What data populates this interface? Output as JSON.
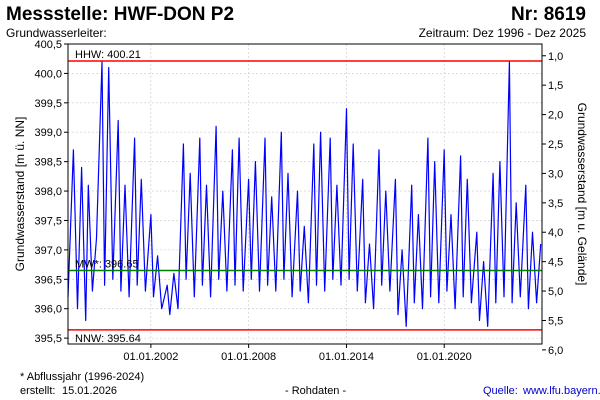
{
  "header": {
    "title": "Messstelle: HWF-DON P2",
    "nr": "Nr: 8619",
    "aquifer": "Grundwasserleiter:",
    "period": "Zeitraum: Dez 1996 - Dez 2025"
  },
  "footer": {
    "footnote": "* Abflussjahr (1996-2024)",
    "created_label": "erstellt:",
    "created_value": "15.01.2026",
    "rawdata": "- Rohdaten -",
    "source_label": "Quelle:",
    "source_value": "www.lfu.bayern.de"
  },
  "colors": {
    "series": "#0000ff",
    "hhw": "#ff0000",
    "nnw": "#ff0000",
    "mw": "#008000",
    "grid": "#c8c8c8"
  },
  "chart_data": {
    "type": "line",
    "ylabel": "Grundwasserstand [m ü. NN]",
    "y2label": "Grundwasserstand [m u. Gelände]",
    "ylim": [
      395.4,
      400.5
    ],
    "y2lim": [
      0.8,
      5.9
    ],
    "y_ticks": [
      "395,5",
      "396,0",
      "396,5",
      "397,0",
      "397,5",
      "398,0",
      "398,5",
      "399,0",
      "399,5",
      "400,0",
      "400,5"
    ],
    "y_tick_values": [
      395.5,
      396.0,
      396.5,
      397.0,
      397.5,
      398.0,
      398.5,
      399.0,
      399.5,
      400.0,
      400.5
    ],
    "y2_ticks": [
      "1,0",
      "1,5",
      "2,0",
      "2,5",
      "3,0",
      "3,5",
      "4,0",
      "4,5",
      "5,0",
      "5,5",
      "6,0"
    ],
    "y2_tick_values": [
      1.0,
      1.5,
      2.0,
      2.5,
      3.0,
      3.5,
      4.0,
      4.5,
      5.0,
      5.5,
      6.0
    ],
    "x_range": [
      "1996-12-01",
      "2025-12-31"
    ],
    "x_ticks": [
      "01.01.2002",
      "01.01.2008",
      "01.01.2014",
      "01.01.2020"
    ],
    "x_tick_dates": [
      "2002-01-01",
      "2008-01-01",
      "2014-01-01",
      "2020-01-01"
    ],
    "grid": true,
    "reference_lines": [
      {
        "label": "HHW: 400.21",
        "value": 400.21
      },
      {
        "label": "MW*: 396.65",
        "value": 396.65
      },
      {
        "label": "NNW: 395.64",
        "value": 395.64
      }
    ],
    "series": [
      {
        "x": [
          "1996-12-01",
          "1997-04-01",
          "1997-07-01",
          "1997-10-01",
          "1998-01-01",
          "1998-03-01",
          "1998-06-01",
          "1998-09-01",
          "1999-01-01",
          "1999-03-01",
          "1999-06-01",
          "1999-09-01",
          "2000-01-01",
          "2000-03-01",
          "2000-06-01",
          "2000-09-01",
          "2001-01-01",
          "2001-03-01",
          "2001-06-01",
          "2001-09-01",
          "2002-01-01",
          "2002-03-01",
          "2002-06-01",
          "2002-09-01",
          "2003-01-01",
          "2003-03-01",
          "2003-06-01",
          "2003-09-01",
          "2004-01-01",
          "2004-03-01",
          "2004-06-01",
          "2004-09-01",
          "2005-01-01",
          "2005-03-01",
          "2005-06-01",
          "2005-09-01",
          "2006-01-01",
          "2006-03-01",
          "2006-06-01",
          "2006-09-01",
          "2007-01-01",
          "2007-03-01",
          "2007-06-01",
          "2007-09-01",
          "2008-01-01",
          "2008-03-01",
          "2008-06-01",
          "2008-09-01",
          "2009-01-01",
          "2009-03-01",
          "2009-06-01",
          "2009-09-01",
          "2010-01-01",
          "2010-03-01",
          "2010-06-01",
          "2010-09-01",
          "2011-01-01",
          "2011-03-01",
          "2011-06-01",
          "2011-09-01",
          "2012-01-01",
          "2012-03-01",
          "2012-06-01",
          "2012-09-01",
          "2013-01-01",
          "2013-03-01",
          "2013-06-01",
          "2013-09-01",
          "2014-01-01",
          "2014-03-01",
          "2014-06-01",
          "2014-09-01",
          "2015-01-01",
          "2015-03-01",
          "2015-06-01",
          "2015-09-01",
          "2016-01-01",
          "2016-03-01",
          "2016-06-01",
          "2016-09-01",
          "2017-01-01",
          "2017-03-01",
          "2017-06-01",
          "2017-09-01",
          "2018-01-01",
          "2018-03-01",
          "2018-06-01",
          "2018-09-01",
          "2019-01-01",
          "2019-03-01",
          "2019-06-01",
          "2019-09-01",
          "2020-01-01",
          "2020-03-01",
          "2020-06-01",
          "2020-09-01",
          "2021-01-01",
          "2021-03-01",
          "2021-06-01",
          "2021-09-01",
          "2022-01-01",
          "2022-03-01",
          "2022-06-01",
          "2022-09-01",
          "2023-01-01",
          "2023-03-01",
          "2023-06-01",
          "2023-09-01",
          "2024-01-01",
          "2024-03-01",
          "2024-06-01",
          "2024-09-01",
          "2025-01-01",
          "2025-03-01",
          "2025-06-01",
          "2025-09-01",
          "2025-12-01"
        ],
        "y": [
          396.2,
          398.7,
          396.0,
          398.4,
          395.8,
          398.1,
          396.3,
          397.2,
          400.2,
          396.4,
          400.1,
          396.5,
          399.2,
          396.3,
          398.1,
          396.2,
          398.9,
          396.4,
          398.2,
          396.3,
          397.6,
          396.2,
          396.9,
          396.0,
          396.4,
          395.9,
          396.6,
          396.0,
          398.8,
          396.5,
          398.3,
          396.2,
          398.9,
          396.4,
          398.1,
          396.2,
          399.1,
          396.5,
          398.0,
          396.3,
          398.7,
          396.4,
          398.9,
          396.3,
          398.2,
          396.5,
          398.5,
          396.3,
          398.9,
          396.4,
          397.9,
          396.3,
          399.0,
          396.5,
          398.3,
          396.2,
          398.0,
          396.3,
          397.4,
          396.1,
          398.8,
          396.4,
          399.0,
          396.3,
          398.9,
          396.5,
          398.1,
          396.4,
          399.4,
          396.5,
          398.8,
          396.3,
          398.2,
          396.1,
          397.1,
          396.0,
          398.7,
          396.4,
          398.0,
          396.3,
          398.2,
          395.9,
          397.0,
          395.7,
          398.1,
          396.1,
          397.6,
          396.0,
          398.9,
          396.2,
          398.5,
          396.1,
          398.7,
          396.3,
          397.6,
          396.0,
          398.6,
          396.2,
          398.2,
          396.1,
          397.3,
          395.8,
          396.8,
          395.7,
          398.3,
          396.1,
          398.5,
          396.2,
          400.2,
          396.1,
          397.8,
          396.2,
          398.1,
          396.0,
          397.3,
          396.1,
          397.1
        ]
      }
    ]
  }
}
